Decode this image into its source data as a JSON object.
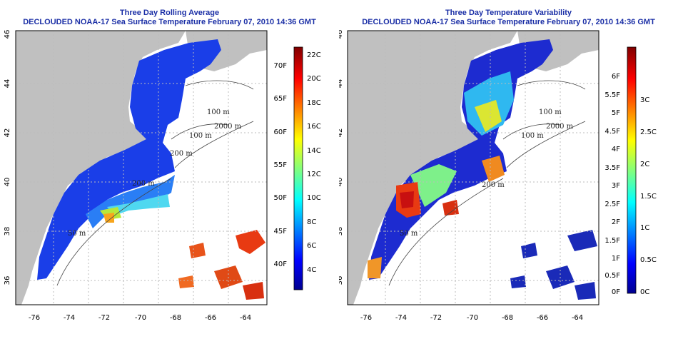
{
  "left_panel": {
    "title_line1": "Three Day Rolling Average",
    "title_line2": "DECLOUDED NOAA-17 Sea Surface Temperature February 07, 2010 14:36 GMT",
    "colorbar_fahrenheit": [
      "70F",
      "65F",
      "60F",
      "55F",
      "50F",
      "45F",
      "40F"
    ],
    "colorbar_celsius": [
      "22C",
      "20C",
      "18C",
      "16C",
      "14C",
      "12C",
      "10C",
      "8C",
      "6C",
      "4C"
    ],
    "contours": [
      "100 m",
      "100 m",
      "2000 m",
      "200 m",
      "200 m",
      "50 m"
    ]
  },
  "right_panel": {
    "title_line1": "Three Day Temperature Variability",
    "title_line2": "DECLOUDED NOAA-17 Sea Surface Temperature February 07, 2010 14:36 GMT",
    "colorbar_fahrenheit": [
      "6F",
      "5.5F",
      "5F",
      "4.5F",
      "4F",
      "3.5F",
      "3F",
      "2.5F",
      "2F",
      "1.5F",
      "1F",
      "0.5F",
      "0F"
    ],
    "colorbar_celsius": [
      "3C",
      "2.5C",
      "2C",
      "1.5C",
      "1C",
      "0.5C",
      "0C"
    ],
    "contours": [
      "100 m",
      "100 m",
      "2000 m",
      "200 m",
      "50 m"
    ]
  },
  "axes": {
    "longitude_labels": [
      "-76",
      "-74",
      "-72",
      "-70",
      "-68",
      "-66",
      "-64"
    ],
    "latitude_labels": [
      "36",
      "38",
      "40",
      "42",
      "44",
      "46"
    ]
  },
  "colors": {
    "title": "#1b2fa6",
    "land": "#c0c0c0",
    "no_data": "#ffffff"
  }
}
